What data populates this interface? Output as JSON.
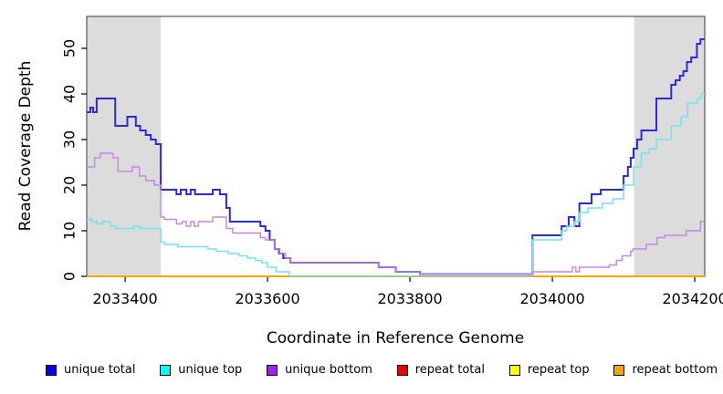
{
  "chart_data": {
    "type": "line",
    "subtype": "step",
    "title": "",
    "xlabel": "Coordinate in Reference Genome",
    "ylabel": "Read Coverage Depth",
    "xlim": [
      2033346,
      2034214
    ],
    "ylim": [
      0,
      57
    ],
    "x_ticks": [
      2033400,
      2033600,
      2033800,
      2034000,
      2034200
    ],
    "y_ticks": [
      0,
      10,
      20,
      30,
      40,
      50
    ],
    "grid": false,
    "legend_position": "bottom",
    "colors": {
      "box": "#555555",
      "shaded_region": "#DCDCDC",
      "tick": "#000000"
    },
    "shaded_regions": [
      {
        "name": "repeat-region-left",
        "x0": 2033346,
        "x1": 2033450
      },
      {
        "name": "repeat-region-right",
        "x0": 2034115,
        "x1": 2034214
      }
    ],
    "series": [
      {
        "name": "repeat total",
        "line_color": "#DD0000",
        "legend_color": "#EE0000",
        "width": 1.6,
        "points": [
          [
            2033346,
            0
          ],
          [
            2034214,
            0
          ]
        ]
      },
      {
        "name": "repeat top",
        "line_color": "#FFFF00",
        "legend_color": "#FFFF00",
        "width": 1.6,
        "points": [
          [
            2033346,
            0
          ],
          [
            2034214,
            0
          ]
        ]
      },
      {
        "name": "repeat bottom",
        "line_color": "#FFA500",
        "legend_color": "#FFA500",
        "width": 1.8,
        "points": [
          [
            2033346,
            0
          ],
          [
            2034214,
            0
          ]
        ]
      },
      {
        "name": "unique total",
        "line_color": "#2A2ADF",
        "legend_color": "#0000EE",
        "width": 2.0,
        "points": [
          [
            2033346,
            36
          ],
          [
            2033351,
            37
          ],
          [
            2033355,
            36
          ],
          [
            2033360,
            39
          ],
          [
            2033386,
            33
          ],
          [
            2033403,
            35
          ],
          [
            2033415,
            33
          ],
          [
            2033421,
            32
          ],
          [
            2033429,
            31
          ],
          [
            2033436,
            30
          ],
          [
            2033443,
            29
          ],
          [
            2033450,
            19
          ],
          [
            2033472,
            18
          ],
          [
            2033478,
            19
          ],
          [
            2033486,
            18
          ],
          [
            2033492,
            19
          ],
          [
            2033498,
            18
          ],
          [
            2033523,
            19
          ],
          [
            2033533,
            18
          ],
          [
            2033542,
            15
          ],
          [
            2033547,
            12
          ],
          [
            2033590,
            11
          ],
          [
            2033597,
            10
          ],
          [
            2033603,
            8
          ],
          [
            2033610,
            6
          ],
          [
            2033616,
            5
          ],
          [
            2033622,
            4
          ],
          [
            2033632,
            3
          ],
          [
            2033756,
            2
          ],
          [
            2033780,
            1
          ],
          [
            2033814,
            0.5
          ],
          [
            2033972,
            9
          ],
          [
            2034013,
            11
          ],
          [
            2034023,
            13
          ],
          [
            2034031,
            11
          ],
          [
            2034038,
            16
          ],
          [
            2034055,
            18
          ],
          [
            2034068,
            19
          ],
          [
            2034100,
            22
          ],
          [
            2034106,
            24
          ],
          [
            2034110,
            26
          ],
          [
            2034114,
            28
          ],
          [
            2034119,
            30
          ],
          [
            2034125,
            32
          ],
          [
            2034146,
            39
          ],
          [
            2034167,
            42
          ],
          [
            2034173,
            43
          ],
          [
            2034179,
            44
          ],
          [
            2034184,
            45
          ],
          [
            2034189,
            47
          ],
          [
            2034195,
            48
          ],
          [
            2034203,
            51
          ],
          [
            2034208,
            52
          ]
        ]
      },
      {
        "name": "unique top",
        "line_color": "#6FE4EE",
        "legend_color": "#00FFFF",
        "width": 1.5,
        "points": [
          [
            2033346,
            12.5
          ],
          [
            2033353,
            12
          ],
          [
            2033360,
            11.5
          ],
          [
            2033368,
            12
          ],
          [
            2033379,
            11
          ],
          [
            2033387,
            10.5
          ],
          [
            2033412,
            11
          ],
          [
            2033420,
            10.5
          ],
          [
            2033450,
            7.5
          ],
          [
            2033455,
            7
          ],
          [
            2033474,
            6.5
          ],
          [
            2033516,
            6
          ],
          [
            2033528,
            5.5
          ],
          [
            2033545,
            5
          ],
          [
            2033560,
            4.5
          ],
          [
            2033572,
            4
          ],
          [
            2033583,
            3.5
          ],
          [
            2033592,
            3
          ],
          [
            2033600,
            2
          ],
          [
            2033612,
            1
          ],
          [
            2033630,
            0
          ],
          [
            2033972,
            8
          ],
          [
            2034013,
            10
          ],
          [
            2034020,
            11
          ],
          [
            2034031,
            12
          ],
          [
            2034038,
            14
          ],
          [
            2034050,
            15
          ],
          [
            2034070,
            16
          ],
          [
            2034085,
            17
          ],
          [
            2034100,
            20
          ],
          [
            2034114,
            24
          ],
          [
            2034125,
            27
          ],
          [
            2034136,
            28
          ],
          [
            2034146,
            30
          ],
          [
            2034167,
            33
          ],
          [
            2034181,
            35
          ],
          [
            2034190,
            38
          ],
          [
            2034204,
            39
          ],
          [
            2034209,
            40
          ]
        ]
      },
      {
        "name": "unique bottom",
        "line_color": "#C485E3",
        "legend_color": "#A020F0",
        "width": 1.4,
        "points": [
          [
            2033346,
            24
          ],
          [
            2033357,
            26
          ],
          [
            2033365,
            27
          ],
          [
            2033383,
            26
          ],
          [
            2033390,
            23
          ],
          [
            2033410,
            24
          ],
          [
            2033420,
            22
          ],
          [
            2033429,
            21
          ],
          [
            2033441,
            20
          ],
          [
            2033450,
            13
          ],
          [
            2033455,
            12.5
          ],
          [
            2033472,
            11.5
          ],
          [
            2033480,
            12
          ],
          [
            2033486,
            11
          ],
          [
            2033492,
            12
          ],
          [
            2033497,
            11
          ],
          [
            2033503,
            12
          ],
          [
            2033523,
            13
          ],
          [
            2033542,
            10.5
          ],
          [
            2033551,
            9.5
          ],
          [
            2033590,
            8.5
          ],
          [
            2033597,
            8
          ],
          [
            2033610,
            6
          ],
          [
            2033617,
            5
          ],
          [
            2033625,
            4
          ],
          [
            2033632,
            3
          ],
          [
            2033756,
            2
          ],
          [
            2033780,
            1
          ],
          [
            2033814,
            0.5
          ],
          [
            2033972,
            1
          ],
          [
            2034028,
            2
          ],
          [
            2034033,
            1
          ],
          [
            2034038,
            2
          ],
          [
            2034080,
            2.5
          ],
          [
            2034090,
            3.5
          ],
          [
            2034098,
            4.5
          ],
          [
            2034110,
            5.5
          ],
          [
            2034113,
            6
          ],
          [
            2034132,
            7
          ],
          [
            2034147,
            8.5
          ],
          [
            2034158,
            9
          ],
          [
            2034188,
            10
          ],
          [
            2034208,
            12
          ]
        ]
      }
    ],
    "zero_overlay_segments": [
      {
        "name": "repeat-bottom-zero-left",
        "x0": 2033346,
        "x1": 2033630,
        "color": "#FFA500",
        "width": 1.8
      },
      {
        "name": "top-yellow-overlap-zero",
        "x0": 2033630,
        "x1": 2033972,
        "color": "#8FD48F",
        "width": 1.5
      },
      {
        "name": "repeat-bottom-zero-right",
        "x0": 2033972,
        "x1": 2034214,
        "color": "#FFA500",
        "width": 1.8
      }
    ],
    "legend": [
      {
        "label": "unique total",
        "color": "#0000EE"
      },
      {
        "label": "unique top",
        "color": "#00FFFF"
      },
      {
        "label": "unique bottom",
        "color": "#A020F0"
      },
      {
        "label": "repeat total",
        "color": "#EE0000"
      },
      {
        "label": "repeat top",
        "color": "#FFFF00"
      },
      {
        "label": "repeat bottom",
        "color": "#FFA500"
      }
    ]
  }
}
